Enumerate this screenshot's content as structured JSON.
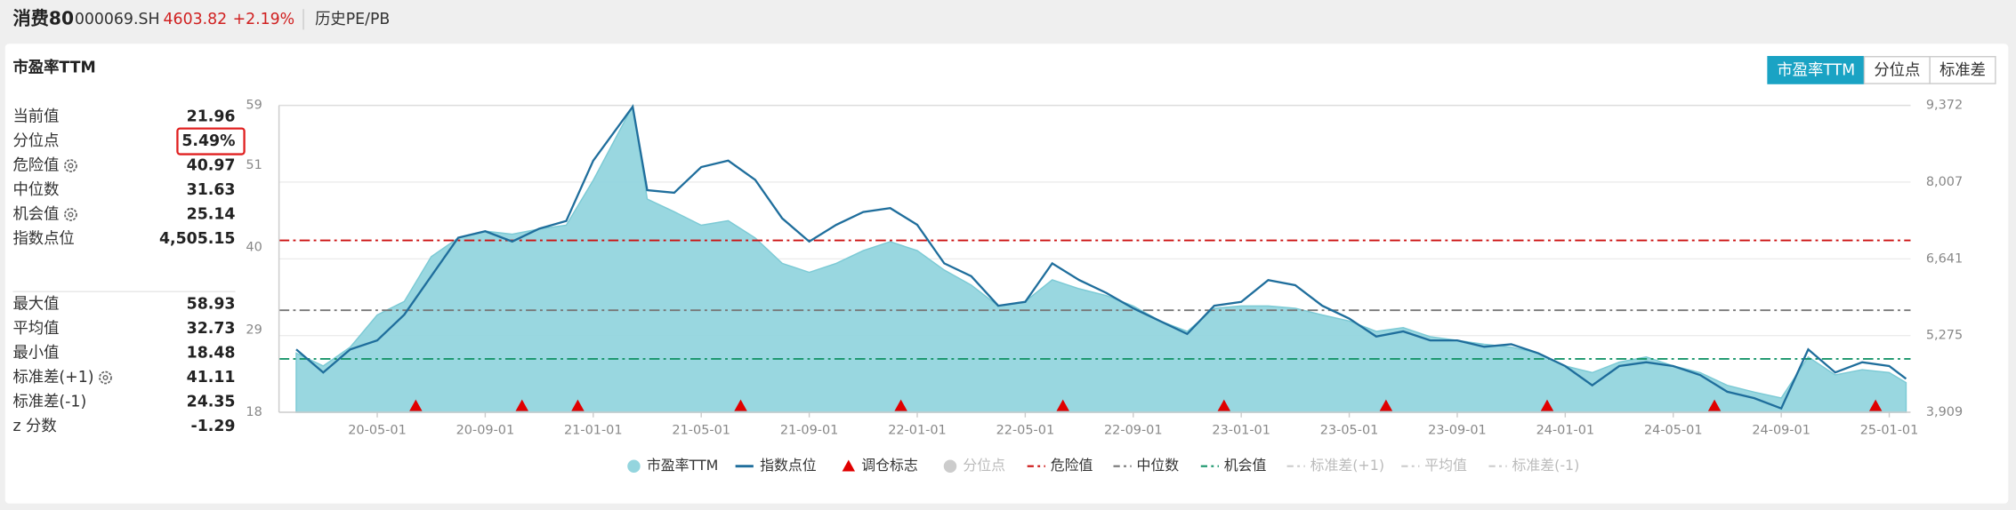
{
  "header": {
    "title": "消费80",
    "code": "000069.SH",
    "price": "4603.82",
    "change": "+2.19%",
    "tab": "历史PE/PB"
  },
  "panel": {
    "title": "市盈率TTM"
  },
  "buttons": [
    "市盈率TTM",
    "分位点",
    "标准差"
  ],
  "stats": [
    [
      {
        "label": "当前值",
        "value": "21.96"
      },
      {
        "label": "分位点",
        "value": "5.49%",
        "highlight": true
      },
      {
        "label": "危险值",
        "value": "40.97",
        "gear": true
      },
      {
        "label": "中位数",
        "value": "31.63"
      },
      {
        "label": "机会值",
        "value": "25.14",
        "gear": true
      },
      {
        "label": "指数点位",
        "value": "4,505.15"
      }
    ],
    [
      {
        "label": "最大值",
        "value": "58.93"
      },
      {
        "label": "平均值",
        "value": "32.73"
      },
      {
        "label": "最小值",
        "value": "18.48"
      },
      {
        "label": "标准差(+1)",
        "value": "41.11",
        "gear": true
      },
      {
        "label": "标准差(-1)",
        "value": "24.35"
      },
      {
        "label": "z 分数",
        "value": "-1.29"
      }
    ]
  ],
  "chart_data": {
    "type": "area",
    "x": [
      "20-02-01",
      "20-03-01",
      "20-04-01",
      "20-05-01",
      "20-06-01",
      "20-07-01",
      "20-08-01",
      "20-09-01",
      "20-10-01",
      "20-11-01",
      "20-12-01",
      "21-01-01",
      "21-02-15",
      "21-03-01",
      "21-04-01",
      "21-05-01",
      "21-06-01",
      "21-07-01",
      "21-08-01",
      "21-09-01",
      "21-10-01",
      "21-11-01",
      "21-12-01",
      "22-01-01",
      "22-02-01",
      "22-03-01",
      "22-04-01",
      "22-05-01",
      "22-06-01",
      "22-07-01",
      "22-08-01",
      "22-09-01",
      "22-10-01",
      "22-11-01",
      "22-12-01",
      "23-01-01",
      "23-02-01",
      "23-03-01",
      "23-04-01",
      "23-05-01",
      "23-06-01",
      "23-07-01",
      "23-08-01",
      "23-09-01",
      "23-10-01",
      "23-11-01",
      "23-12-01",
      "24-01-01",
      "24-02-01",
      "24-03-01",
      "24-04-01",
      "24-05-01",
      "24-06-01",
      "24-07-01",
      "24-08-01",
      "24-09-01",
      "24-10-01",
      "24-11-01",
      "24-12-01",
      "25-01-01",
      "25-01-20"
    ],
    "xlim": [
      "20-01-12",
      "25-01-25"
    ],
    "xticks": [
      "20-05-01",
      "20-09-01",
      "21-01-01",
      "21-05-01",
      "21-09-01",
      "22-01-01",
      "22-05-01",
      "22-09-01",
      "23-01-01",
      "23-05-01",
      "23-09-01",
      "24-01-01",
      "24-05-01",
      "24-09-01",
      "25-01-01"
    ],
    "ylim": [
      18,
      59
    ],
    "yticks": [
      18,
      29,
      40,
      51,
      59
    ],
    "y2lim": [
      3909,
      9372
    ],
    "y2ticks": [
      {
        "value": 3909,
        "label": "3,909"
      },
      {
        "value": 5275,
        "label": "5,275"
      },
      {
        "value": 6641,
        "label": "6,641"
      },
      {
        "value": 8007,
        "label": "8,007"
      },
      {
        "value": 9372,
        "label": "9,372"
      }
    ],
    "grid": true,
    "series": [
      {
        "name": "市盈率TTM",
        "type": "area",
        "color": "#94d5de",
        "values": [
          25.9,
          24.2,
          26.7,
          31.0,
          32.8,
          38.8,
          41.3,
          42.2,
          41.8,
          42.5,
          43.0,
          49.0,
          58.93,
          46.5,
          44.8,
          43.0,
          43.6,
          41.3,
          37.9,
          36.7,
          37.9,
          39.6,
          40.8,
          39.6,
          37.0,
          35.0,
          32.2,
          32.8,
          35.7,
          34.5,
          33.6,
          32.2,
          30.2,
          28.8,
          31.9,
          32.2,
          32.2,
          31.9,
          31.0,
          30.2,
          28.8,
          29.3,
          28.1,
          27.6,
          27.1,
          26.7,
          25.9,
          24.2,
          23.3,
          24.7,
          25.4,
          24.2,
          23.3,
          21.6,
          20.7,
          19.9,
          25.4,
          23.0,
          23.7,
          23.3,
          21.96
        ]
      },
      {
        "name": "指数点位",
        "type": "line",
        "axis": "y2",
        "color": "#1f6e9c",
        "values": [
          5029,
          4618,
          5029,
          5189,
          5646,
          6332,
          7018,
          7132,
          6949,
          7178,
          7315,
          8390,
          9350,
          7864,
          7818,
          8275,
          8390,
          8047,
          7361,
          6949,
          7247,
          7475,
          7544,
          7247,
          6561,
          6332,
          5806,
          5875,
          6561,
          6264,
          6035,
          5761,
          5532,
          5303,
          5806,
          5875,
          6264,
          6172,
          5806,
          5578,
          5258,
          5349,
          5189,
          5189,
          5075,
          5121,
          4961,
          4732,
          4389,
          4732,
          4801,
          4732,
          4572,
          4275,
          4160,
          3978,
          5029,
          4618,
          4801,
          4732,
          4505.15
        ]
      }
    ],
    "markers": {
      "name": "调仓标志",
      "color": "#e00000",
      "x": [
        "20-06-14",
        "20-10-12",
        "20-12-14",
        "21-06-15",
        "21-12-13",
        "22-06-13",
        "22-12-12",
        "23-06-12",
        "23-12-11",
        "24-06-17",
        "24-12-16"
      ]
    },
    "reference_lines": [
      {
        "name": "危险值",
        "value": 40.97,
        "color": "#cc1111"
      },
      {
        "name": "中位数",
        "value": 31.63,
        "color": "#777777"
      },
      {
        "name": "机会值",
        "value": 25.14,
        "color": "#17956a"
      }
    ],
    "inactive_series": [
      {
        "name": "分位点",
        "marker": "circle"
      },
      {
        "name": "标准差(+1)",
        "marker": "dash"
      },
      {
        "name": "平均值",
        "marker": "dash"
      },
      {
        "name": "标准差(-1)",
        "marker": "dash"
      }
    ]
  }
}
